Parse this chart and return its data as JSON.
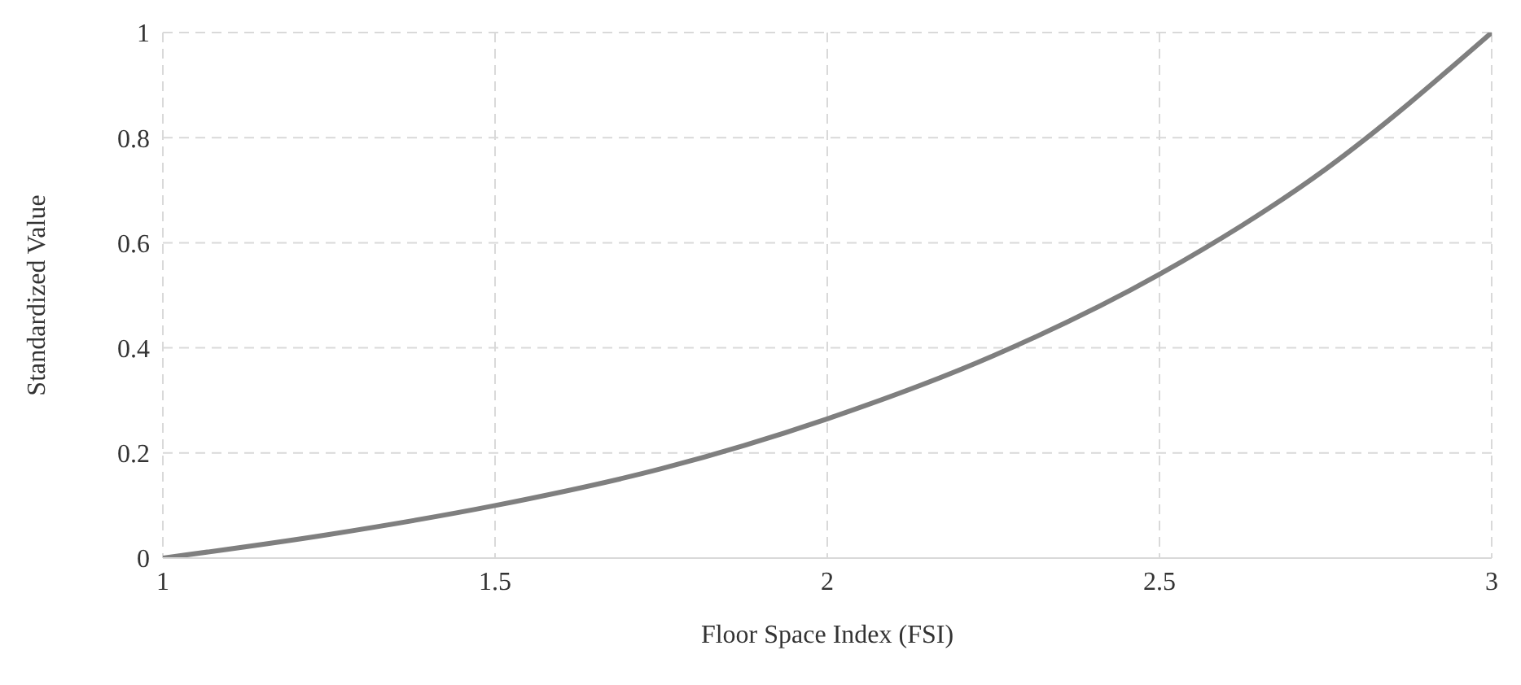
{
  "chart_data": {
    "type": "line",
    "xlabel": "Floor Space Index (FSI)",
    "ylabel": "Standardized Value",
    "x": [
      1,
      1.25,
      1.5,
      1.75,
      2,
      2.25,
      2.5,
      2.75,
      3
    ],
    "series": [
      {
        "color": "#7f7f7f",
        "values": [
          0,
          0.045,
          0.1,
          0.17,
          0.265,
          0.385,
          0.54,
          0.74,
          1
        ]
      }
    ],
    "xlim": [
      1,
      3
    ],
    "xticks": [
      1,
      1.5,
      2,
      2.5,
      3
    ],
    "ylim": [
      0,
      1
    ],
    "yticks": [
      0,
      0.2,
      0.4,
      0.6,
      0.8,
      1
    ],
    "grid": true
  }
}
